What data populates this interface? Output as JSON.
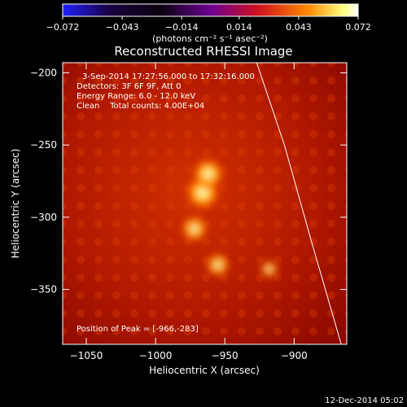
{
  "chart_data": {
    "type": "heatmap",
    "title": "Reconstructed RHESSI Image",
    "xlabel": "Heliocentric X (arcsec)",
    "ylabel": "Heliocentric Y (arcsec)",
    "xlim": [
      -1067,
      -862
    ],
    "ylim": [
      -388,
      -193
    ],
    "x_ticks": [
      "−1050",
      "−1000",
      "−950",
      "−900"
    ],
    "x_tick_values": [
      -1050,
      -1000,
      -950,
      -900
    ],
    "y_ticks": [
      "−200",
      "−250",
      "−300",
      "−350"
    ],
    "y_tick_values": [
      -200,
      -250,
      -300,
      -350
    ],
    "colorbar": {
      "labels": [
        "−0.072",
        "−0.043",
        "−0.014",
        "0.014",
        "0.043",
        "0.072"
      ],
      "values": [
        -0.072,
        -0.043,
        -0.014,
        0.014,
        0.043,
        0.072
      ],
      "units": "(photons cm⁻² s⁻¹ asec⁻²)",
      "colors": [
        "#1a1aff",
        "#1b0030",
        "#5a0080",
        "#c00000",
        "#ff7a00",
        "#ffff90",
        "#ffffff"
      ]
    },
    "info_lines": [
      "3-Sep-2014 17:27:56.000 to 17:32:16.000",
      "Detectors: 3F 6F 9F, Att 0",
      "Energy Range: 6.0 - 12.0 keV",
      "Clean    Total counts: 4.00E+04"
    ],
    "peak_label": "Position of Peak = [-966,-283]",
    "sources": [
      {
        "x": -966,
        "y": -283,
        "level": 1.0
      },
      {
        "x": -962,
        "y": -270,
        "level": 0.9
      },
      {
        "x": -972,
        "y": -308,
        "level": 0.7
      },
      {
        "x": -955,
        "y": -333,
        "level": 0.6
      },
      {
        "x": -918,
        "y": -336,
        "level": 0.35
      }
    ],
    "limb_curve": [
      {
        "x": -927,
        "y": -193
      },
      {
        "x": -907,
        "y": -250
      },
      {
        "x": -888,
        "y": -315
      },
      {
        "x": -866,
        "y": -388
      }
    ]
  },
  "footer_date": "12-Dec-2014 05:02"
}
